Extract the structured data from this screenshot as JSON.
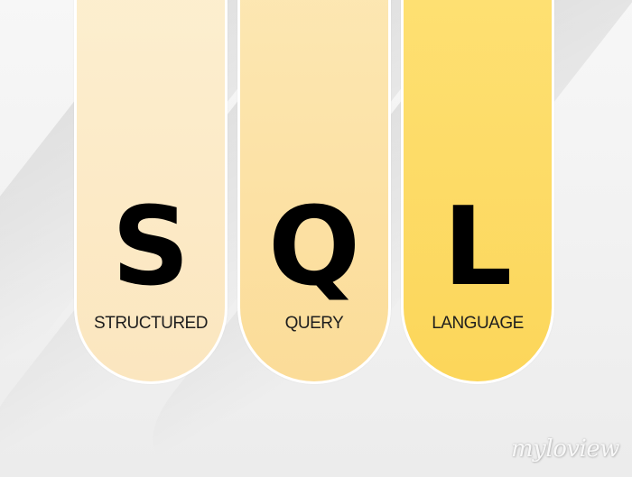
{
  "columns": [
    {
      "letter": "S",
      "word": "STRUCTURED",
      "color": "#fbe9c6"
    },
    {
      "letter": "Q",
      "word": "QUERY",
      "color": "#fcdf9f"
    },
    {
      "letter": "L",
      "word": "LANGUAGE",
      "color": "#fdd862"
    }
  ],
  "watermark": {
    "text": "myloview"
  },
  "colors": {
    "background": "#f2f2f2",
    "letter": "#000000",
    "word": "#1e1e1e",
    "border": "#ffffff"
  }
}
